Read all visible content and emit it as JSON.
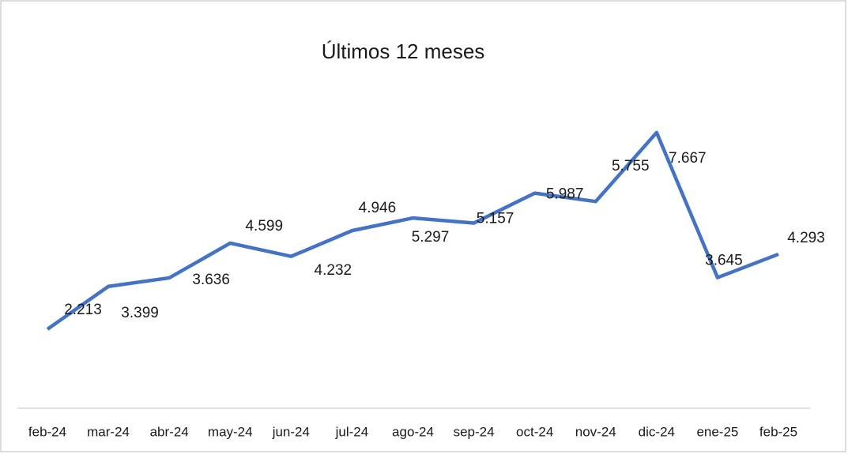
{
  "chart_data": {
    "type": "line",
    "title": "Últimos 12 meses",
    "categories": [
      "feb-24",
      "mar-24",
      "abr-24",
      "may-24",
      "jun-24",
      "jul-24",
      "ago-24",
      "sep-24",
      "oct-24",
      "nov-24",
      "dic-24",
      "ene-25",
      "feb-25"
    ],
    "series": [
      {
        "name": "Últimos 12 meses",
        "color": "#4472c4",
        "values": [
          2213,
          3399,
          3636,
          4599,
          4232,
          4946,
          5297,
          5157,
          5987,
          5755,
          7667,
          3645,
          4293
        ],
        "value_labels": [
          "2.213",
          "3.399",
          "3.636",
          "4.599",
          "4.232",
          "4.946",
          "5.297",
          "5.157",
          "5.987",
          "5.755",
          "7.667",
          "3.645",
          "4.293"
        ]
      }
    ],
    "ylim": [
      0,
      9000
    ]
  }
}
